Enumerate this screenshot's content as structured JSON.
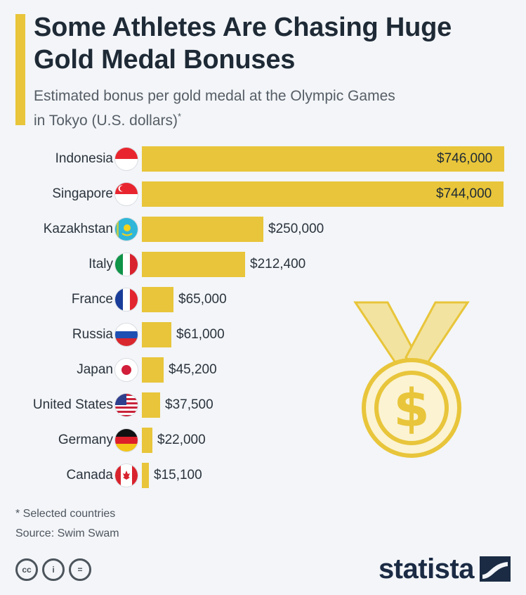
{
  "header": {
    "title": "Some Athletes Are Chasing Huge Gold Medal Bonuses",
    "subtitle": "Estimated bonus per gold medal at the Olympic Games in Tokyo (U.S. dollars)",
    "subtitle_mark": "*"
  },
  "chart_data": {
    "type": "bar",
    "orientation": "horizontal",
    "title": "Some Athletes Are Chasing Huge Gold Medal Bonuses",
    "subtitle": "Estimated bonus per gold medal at the Olympic Games in Tokyo (U.S. dollars)*",
    "categories": [
      "Indonesia",
      "Singapore",
      "Kazakhstan",
      "Italy",
      "France",
      "Russia",
      "Japan",
      "United States",
      "Germany",
      "Canada"
    ],
    "values": [
      746000,
      744000,
      250000,
      212400,
      65000,
      61000,
      45200,
      37500,
      22000,
      15100
    ],
    "value_labels": [
      "$746,000",
      "$744,000",
      "$250,000",
      "$212,400",
      "$65,000",
      "$61,000",
      "$45,200",
      "$37,500",
      "$22,000",
      "$15,100"
    ],
    "bar_color": "#e8c53a",
    "grid": false,
    "legend": "none"
  },
  "footer": {
    "note": "* Selected countries",
    "source": "Source: Swim Swam",
    "brand": "statista",
    "license_icons": [
      "cc-icon",
      "attribution-icon",
      "no-derivatives-icon"
    ],
    "license_glyphs": [
      "cc",
      "i",
      "="
    ]
  },
  "colors": {
    "accent": "#e8c53a",
    "background": "#f3f5f8",
    "text": "#1e2a36",
    "brand": "#1b2b44"
  }
}
